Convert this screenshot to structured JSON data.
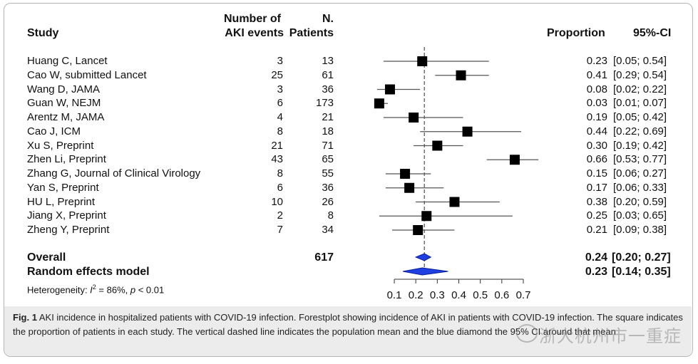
{
  "headers": {
    "study": "Study",
    "events_line1": "Number of",
    "events_line2": "AKI events",
    "patients_line1": "N.",
    "patients_line2": "Patients",
    "proportion": "Proportion",
    "ci": "95%-CI"
  },
  "overall": {
    "label": "Overall",
    "patients": "617",
    "proportion": "0.24",
    "ci": "[0.20; 0.27]"
  },
  "random": {
    "label": "Random effects model",
    "proportion": "0.23",
    "ci": "[0.14; 0.35]"
  },
  "heterogeneity": {
    "prefix": "Heterogeneity: ",
    "i": "I",
    "sup": "2",
    "mid": " = 86%, ",
    "p": "p",
    "end": " < 0.01"
  },
  "caption": {
    "fig": "Fig. 1",
    "text": " AKI incidence in hospitalized patients with COVID-19 infection. Forestplot showing incidence of AKI in patients with COVID-19 infection. The square indicates the proportion of patients in each study. The vertical dashed line indicates the population mean and the blue diamond the 95% CI around that mean"
  },
  "watermark": "浙大杭州市一重症",
  "colors": {
    "diamond": "#1f3fe0",
    "square": "#000000",
    "frame": "#b5b5b5",
    "caption_bg": "#ececec"
  },
  "chart_data": {
    "type": "forest",
    "xlim": [
      0.1,
      0.7
    ],
    "xticks": [
      "0.1",
      "0.2",
      "0.3",
      "0.4",
      "0.5",
      "0.6",
      "0.7"
    ],
    "reference_line": 0.24,
    "studies": [
      {
        "study": "Huang C, Lancet",
        "events": 3,
        "patients": 13,
        "proportion": 0.23,
        "lower": 0.05,
        "upper": 0.54,
        "prop_label": "0.23",
        "ci_label": "[0.05; 0.54]"
      },
      {
        "study": "Cao W, submitted Lancet",
        "events": 25,
        "patients": 61,
        "proportion": 0.41,
        "lower": 0.29,
        "upper": 0.54,
        "prop_label": "0.41",
        "ci_label": "[0.29; 0.54]"
      },
      {
        "study": "Wang D, JAMA",
        "events": 3,
        "patients": 36,
        "proportion": 0.08,
        "lower": 0.02,
        "upper": 0.22,
        "prop_label": "0.08",
        "ci_label": "[0.02; 0.22]"
      },
      {
        "study": "Guan W, NEJM",
        "events": 6,
        "patients": 173,
        "proportion": 0.03,
        "lower": 0.01,
        "upper": 0.07,
        "prop_label": "0.03",
        "ci_label": "[0.01; 0.07]"
      },
      {
        "study": "Arentz M, JAMA",
        "events": 4,
        "patients": 21,
        "proportion": 0.19,
        "lower": 0.05,
        "upper": 0.42,
        "prop_label": "0.19",
        "ci_label": "[0.05; 0.42]"
      },
      {
        "study": "Cao J, ICM",
        "events": 8,
        "patients": 18,
        "proportion": 0.44,
        "lower": 0.22,
        "upper": 0.69,
        "prop_label": "0.44",
        "ci_label": "[0.22; 0.69]"
      },
      {
        "study": "Xu S, Preprint",
        "events": 21,
        "patients": 71,
        "proportion": 0.3,
        "lower": 0.19,
        "upper": 0.42,
        "prop_label": "0.30",
        "ci_label": "[0.19; 0.42]"
      },
      {
        "study": "Zhen Li, Preprint",
        "events": 43,
        "patients": 65,
        "proportion": 0.66,
        "lower": 0.53,
        "upper": 0.77,
        "prop_label": "0.66",
        "ci_label": "[0.53; 0.77]"
      },
      {
        "study": "Zhang G, Journal of Clinical Virology",
        "events": 8,
        "patients": 55,
        "proportion": 0.15,
        "lower": 0.06,
        "upper": 0.27,
        "prop_label": "0.15",
        "ci_label": "[0.06; 0.27]"
      },
      {
        "study": "Yan S, Preprint",
        "events": 6,
        "patients": 36,
        "proportion": 0.17,
        "lower": 0.06,
        "upper": 0.33,
        "prop_label": "0.17",
        "ci_label": "[0.06; 0.33]"
      },
      {
        "study": "HU L, Preprint",
        "events": 10,
        "patients": 26,
        "proportion": 0.38,
        "lower": 0.2,
        "upper": 0.59,
        "prop_label": "0.38",
        "ci_label": "[0.20; 0.59]"
      },
      {
        "study": "Jiang X, Preprint",
        "events": 2,
        "patients": 8,
        "proportion": 0.25,
        "lower": 0.03,
        "upper": 0.65,
        "prop_label": "0.25",
        "ci_label": "[0.03; 0.65]"
      },
      {
        "study": "Zheng Y, Preprint",
        "events": 7,
        "patients": 34,
        "proportion": 0.21,
        "lower": 0.09,
        "upper": 0.38,
        "prop_label": "0.21",
        "ci_label": "[0.09; 0.38]"
      }
    ],
    "overall": {
      "proportion": 0.24,
      "lower": 0.2,
      "upper": 0.27
    },
    "random_effects": {
      "proportion": 0.23,
      "lower": 0.14,
      "upper": 0.35
    }
  }
}
